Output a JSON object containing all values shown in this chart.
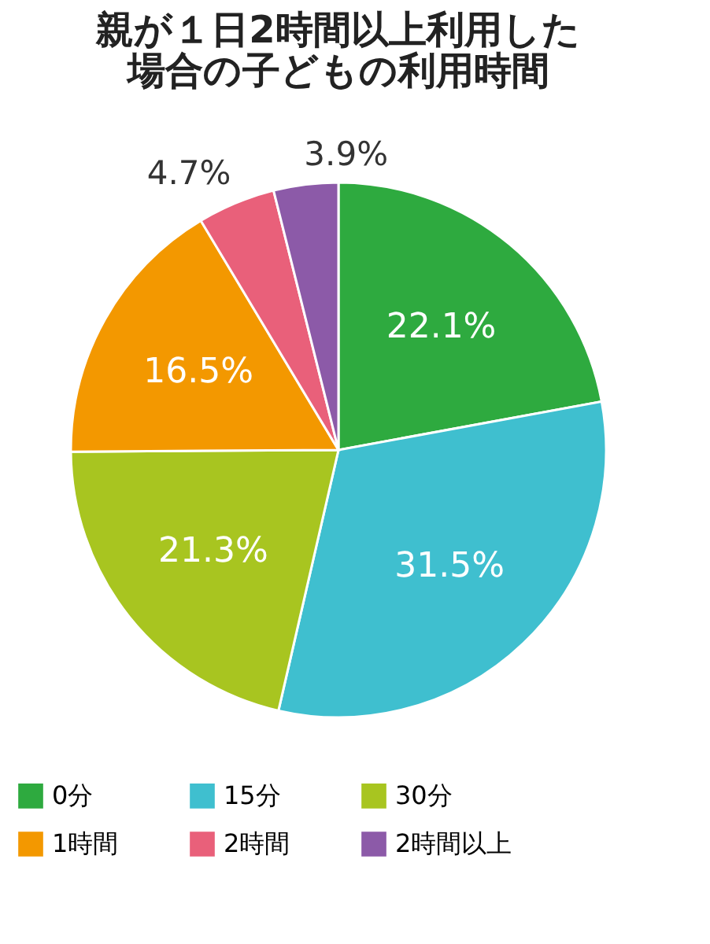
{
  "chart_data": {
    "type": "pie",
    "title": [
      "親が１日2時間以上利用した",
      "場合の子どもの利用時間"
    ],
    "categories": [
      "0分",
      "15分",
      "30分",
      "1時間",
      "2時間",
      "2時間以上"
    ],
    "values": [
      22.1,
      31.5,
      21.3,
      16.5,
      4.7,
      3.9
    ],
    "colors": [
      "#2eaa3f",
      "#3fbfcf",
      "#a8c520",
      "#f39800",
      "#e9607a",
      "#8c5aa8"
    ],
    "value_labels": [
      "22.1%",
      "31.5%",
      "21.3%",
      "16.5%",
      "4.7%",
      "3.9%"
    ],
    "legend": "bottom"
  }
}
